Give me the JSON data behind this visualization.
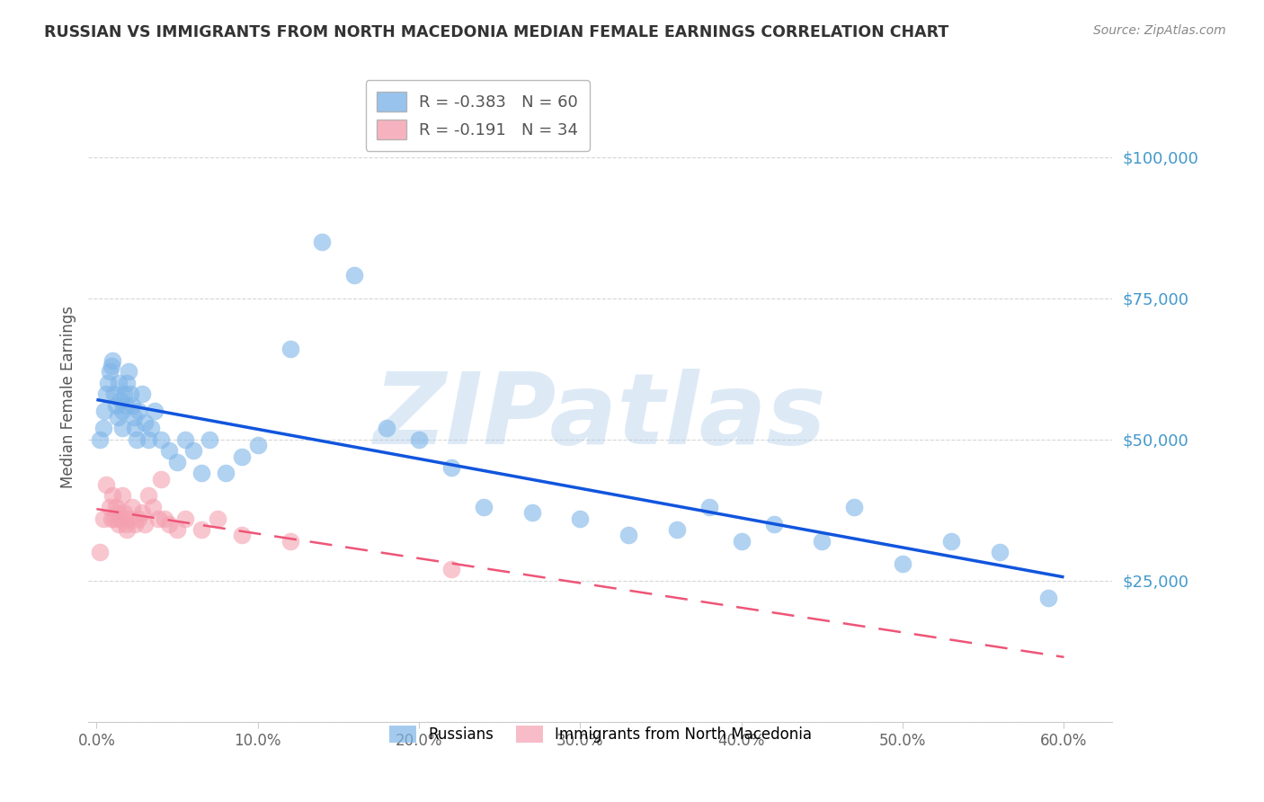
{
  "title": "RUSSIAN VS IMMIGRANTS FROM NORTH MACEDONIA MEDIAN FEMALE EARNINGS CORRELATION CHART",
  "source": "Source: ZipAtlas.com",
  "ylabel": "Median Female Earnings",
  "xlabel_ticks": [
    "0.0%",
    "10.0%",
    "20.0%",
    "30.0%",
    "40.0%",
    "50.0%",
    "60.0%"
  ],
  "xtick_positions": [
    0.0,
    0.1,
    0.2,
    0.3,
    0.4,
    0.5,
    0.6
  ],
  "ytick_values": [
    0,
    25000,
    50000,
    75000,
    100000
  ],
  "ytick_right_labels": [
    "$25,000",
    "$50,000",
    "$75,000",
    "$100,000"
  ],
  "ylim": [
    0,
    115000
  ],
  "xlim": [
    -0.005,
    0.63
  ],
  "russian_R": "-0.383",
  "russian_N": "60",
  "macedonia_R": "-0.191",
  "macedonia_N": "34",
  "blue_scatter": "#7EB5E8",
  "pink_scatter": "#F4A0B0",
  "line_blue": "#1155DD",
  "line_pink": "#EE5577",
  "watermark_text": "ZIPatlas",
  "bg_color": "#FFFFFF",
  "grid_color": "#CCCCCC",
  "title_color": "#333333",
  "axis_label_color": "#555555",
  "right_tick_color": "#4499CC",
  "legend_text_color": "#555555",
  "legend_R_color": "#EE3344",
  "legend_N_color": "#2244CC",
  "russian_x": [
    0.002,
    0.004,
    0.005,
    0.006,
    0.007,
    0.008,
    0.009,
    0.01,
    0.011,
    0.012,
    0.013,
    0.014,
    0.015,
    0.016,
    0.016,
    0.017,
    0.018,
    0.019,
    0.02,
    0.021,
    0.022,
    0.023,
    0.024,
    0.025,
    0.026,
    0.028,
    0.03,
    0.032,
    0.034,
    0.036,
    0.04,
    0.045,
    0.05,
    0.055,
    0.06,
    0.065,
    0.07,
    0.08,
    0.09,
    0.1,
    0.12,
    0.14,
    0.16,
    0.18,
    0.2,
    0.22,
    0.24,
    0.27,
    0.3,
    0.33,
    0.36,
    0.38,
    0.4,
    0.42,
    0.45,
    0.47,
    0.5,
    0.53,
    0.56,
    0.59
  ],
  "russian_y": [
    50000,
    52000,
    55000,
    58000,
    60000,
    62000,
    63000,
    64000,
    58000,
    56000,
    54000,
    60000,
    57000,
    55000,
    52000,
    58000,
    56000,
    60000,
    62000,
    58000,
    56000,
    54000,
    52000,
    50000,
    55000,
    58000,
    53000,
    50000,
    52000,
    55000,
    50000,
    48000,
    46000,
    50000,
    48000,
    44000,
    50000,
    44000,
    47000,
    49000,
    66000,
    85000,
    79000,
    52000,
    50000,
    45000,
    38000,
    37000,
    36000,
    33000,
    34000,
    38000,
    32000,
    35000,
    32000,
    38000,
    28000,
    32000,
    30000,
    22000
  ],
  "macedonia_x": [
    0.002,
    0.004,
    0.006,
    0.008,
    0.009,
    0.01,
    0.011,
    0.012,
    0.013,
    0.014,
    0.015,
    0.016,
    0.017,
    0.018,
    0.019,
    0.02,
    0.022,
    0.024,
    0.026,
    0.028,
    0.03,
    0.032,
    0.035,
    0.038,
    0.04,
    0.042,
    0.045,
    0.05,
    0.055,
    0.065,
    0.075,
    0.09,
    0.12,
    0.22
  ],
  "macedonia_y": [
    30000,
    36000,
    42000,
    38000,
    36000,
    40000,
    36000,
    38000,
    37000,
    35000,
    36000,
    40000,
    37000,
    35000,
    34000,
    36000,
    38000,
    35000,
    36000,
    37000,
    35000,
    40000,
    38000,
    36000,
    43000,
    36000,
    35000,
    34000,
    36000,
    34000,
    36000,
    33000,
    32000,
    27000
  ]
}
